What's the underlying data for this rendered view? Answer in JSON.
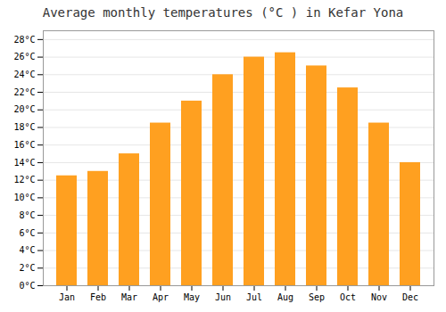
{
  "chart_data": {
    "type": "bar",
    "title": "Average monthly temperatures (°C ) in Kefar Yona",
    "categories": [
      "Jan",
      "Feb",
      "Mar",
      "Apr",
      "May",
      "Jun",
      "Jul",
      "Aug",
      "Sep",
      "Oct",
      "Nov",
      "Dec"
    ],
    "values": [
      12.5,
      13.0,
      15.0,
      18.5,
      21.0,
      24.0,
      26.0,
      26.5,
      25.0,
      22.5,
      18.5,
      14.0
    ],
    "color": "#FFA020",
    "ylim": [
      0,
      29
    ],
    "yticks": [
      {
        "value": 0,
        "label": "0°C"
      },
      {
        "value": 2,
        "label": "2°C"
      },
      {
        "value": 4,
        "label": "4°C"
      },
      {
        "value": 6,
        "label": "6°C"
      },
      {
        "value": 8,
        "label": "8°C"
      },
      {
        "value": 10,
        "label": "10°C"
      },
      {
        "value": 12,
        "label": "12°C"
      },
      {
        "value": 14,
        "label": "14°C"
      },
      {
        "value": 16,
        "label": "16°C"
      },
      {
        "value": 18,
        "label": "18°C"
      },
      {
        "value": 20,
        "label": "20°C"
      },
      {
        "value": 22,
        "label": "22°C"
      },
      {
        "value": 24,
        "label": "24°C"
      },
      {
        "value": 26,
        "label": "26°C"
      },
      {
        "value": 28,
        "label": "28°C"
      }
    ],
    "grid": true
  }
}
